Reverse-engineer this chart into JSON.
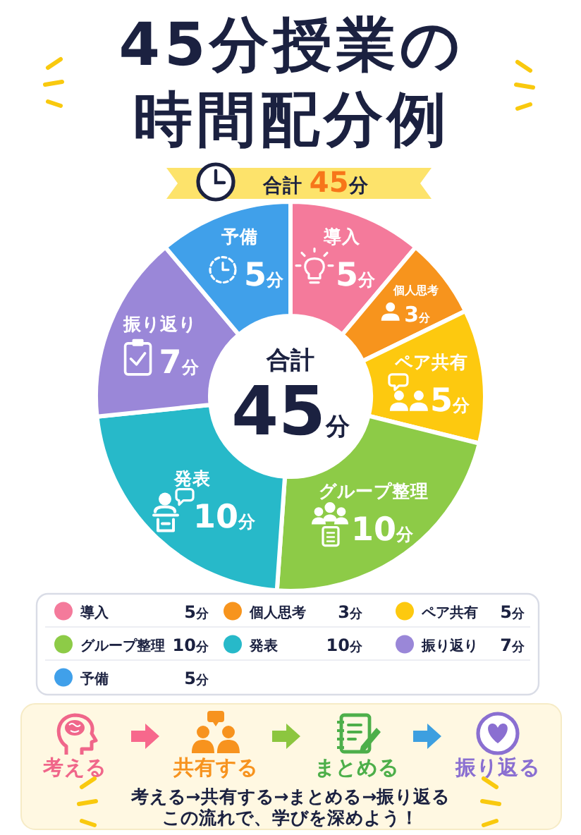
{
  "chart_data": {
    "type": "donut",
    "title": "45分授業の時間配分例",
    "subtitle": "合計 45分",
    "categories": [
      "導入",
      "個人思考",
      "ペア共有",
      "グループ整理",
      "発表",
      "振り返り",
      "予備"
    ],
    "values": [
      5,
      3,
      5,
      10,
      10,
      7,
      5
    ],
    "colors": [
      "#f47a9b",
      "#f7941d",
      "#fdc90f",
      "#8dcb47",
      "#27b9c9",
      "#9a87d8",
      "#40a0ea"
    ],
    "value_labels": [
      "5分",
      "3分",
      "5分",
      "10分",
      "10分",
      "7分",
      "5分"
    ],
    "legend": "bottom",
    "annotations": [
      "合計",
      "45分",
      "考える",
      "共有する",
      "まとめる",
      "振り返る",
      "考える→共有する→まとめる→振り返る",
      "この流れで、学びを深めよう！"
    ]
  }
}
